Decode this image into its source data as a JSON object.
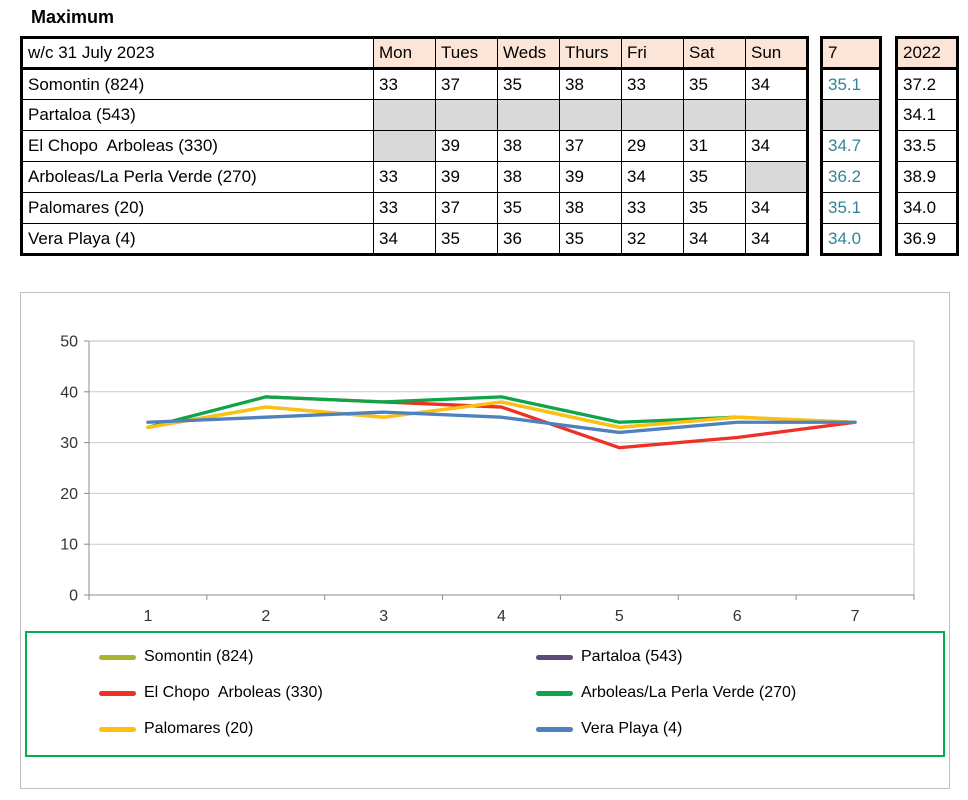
{
  "title": "Maximum",
  "table": {
    "week_label": "w/c 31 July 2023",
    "day_headers": [
      "Mon",
      "Tues",
      "Weds",
      "Thurs",
      "Fri",
      "Sat",
      "Sun"
    ],
    "avg_header": "7",
    "prev_year_header": "2022",
    "rows": [
      {
        "name": "Somontin (824)",
        "days": [
          "33",
          "37",
          "35",
          "38",
          "33",
          "35",
          "34"
        ],
        "avg": "35.1",
        "prev_year": "37.2"
      },
      {
        "name": "Partaloa (543)",
        "days": [
          "",
          "",
          "",
          "",
          "",
          "",
          ""
        ],
        "avg": "",
        "prev_year": "34.1"
      },
      {
        "name": "El Chopo  Arboleas (330)",
        "days": [
          "",
          "39",
          "38",
          "37",
          "29",
          "31",
          "34"
        ],
        "avg": "34.7",
        "prev_year": "33.5"
      },
      {
        "name": "Arboleas/La Perla Verde (270)",
        "days": [
          "33",
          "39",
          "38",
          "39",
          "34",
          "35",
          ""
        ],
        "avg": "36.2",
        "prev_year": "38.9"
      },
      {
        "name": "Palomares (20)",
        "days": [
          "33",
          "37",
          "35",
          "38",
          "33",
          "35",
          "34"
        ],
        "avg": "35.1",
        "prev_year": "34.0"
      },
      {
        "name": "Vera Playa (4)",
        "days": [
          "34",
          "35",
          "36",
          "35",
          "32",
          "34",
          "34"
        ],
        "avg": "34.0",
        "prev_year": "36.9"
      }
    ],
    "colors": {
      "header_bg": "#FCE4D6",
      "empty_cell_bg": "#D9D9D9",
      "avg_text": "#31849B"
    }
  },
  "chart_data": {
    "type": "line",
    "x": [
      "1",
      "2",
      "3",
      "4",
      "5",
      "6",
      "7"
    ],
    "ylim": [
      0,
      50
    ],
    "yticks": [
      0,
      10,
      20,
      30,
      40,
      50
    ],
    "grid": true,
    "legend_position": "bottom",
    "legend_border_color": "#00B050",
    "series": [
      {
        "name": "Somontin (824)",
        "color": "#A9B42F",
        "values": [
          33,
          37,
          35,
          38,
          33,
          35,
          34
        ]
      },
      {
        "name": "Partaloa (543)",
        "color": "#5B4A78",
        "values": [
          null,
          null,
          null,
          null,
          null,
          null,
          null
        ]
      },
      {
        "name": "El Chopo  Arboleas (330)",
        "color": "#EE3124",
        "values": [
          null,
          39,
          38,
          37,
          29,
          31,
          34
        ]
      },
      {
        "name": "Arboleas/La Perla Verde (270)",
        "color": "#0FA44A",
        "values": [
          33,
          39,
          38,
          39,
          34,
          35,
          null
        ]
      },
      {
        "name": "Palomares (20)",
        "color": "#FDC010",
        "values": [
          33,
          37,
          35,
          38,
          33,
          35,
          34
        ]
      },
      {
        "name": "Vera Playa (4)",
        "color": "#4E81BD",
        "values": [
          34,
          35,
          36,
          35,
          32,
          34,
          34
        ]
      }
    ]
  }
}
